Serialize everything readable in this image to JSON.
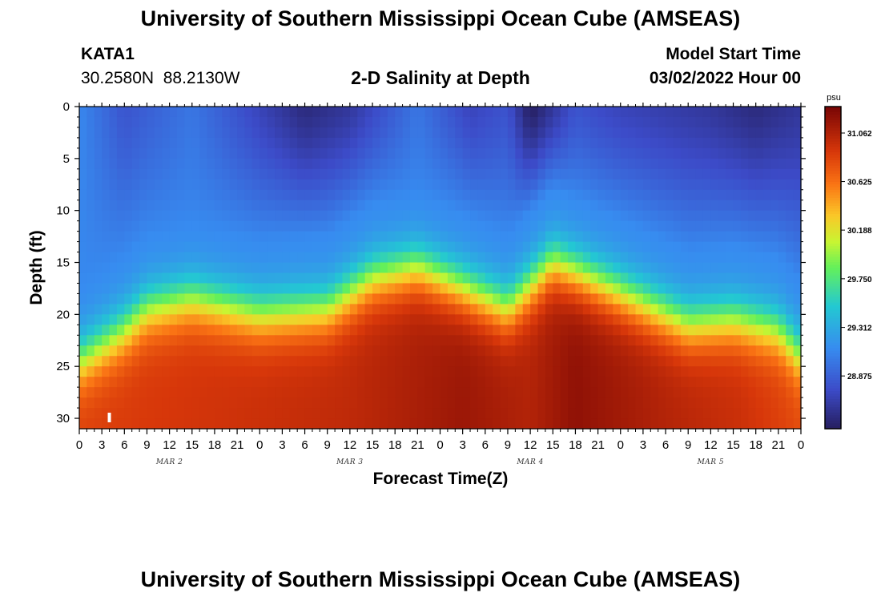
{
  "header": {
    "title": "University of Southern Mississippi Ocean Cube (AMSEAS)",
    "station_id": "KATA1",
    "station_coords": "30.2580N  88.2130W",
    "subtitle": "2-D Salinity at Depth",
    "model_start_label": "Model Start Time",
    "model_start_value": "03/02/2022 Hour 00"
  },
  "footer": {
    "title": "University of Southern Mississippi Ocean Cube (AMSEAS)"
  },
  "chart_data": {
    "type": "heatmap",
    "title": "2-D Salinity at Depth",
    "xlabel": "Forecast Time(Z)",
    "ylabel": "Depth (ft)",
    "x_hour_range": [
      0,
      96
    ],
    "x_tick_labels": [
      "0",
      "3",
      "6",
      "9",
      "12",
      "15",
      "18",
      "21",
      "0",
      "3",
      "6",
      "9",
      "12",
      "15",
      "18",
      "21",
      "0",
      "3",
      "6",
      "9",
      "12",
      "15",
      "18",
      "21",
      "0",
      "3",
      "6",
      "9",
      "12",
      "15",
      "18",
      "21",
      "0"
    ],
    "date_labels": [
      {
        "label": "MAR 2",
        "hour": 12
      },
      {
        "label": "MAR 3",
        "hour": 36
      },
      {
        "label": "MAR 4",
        "hour": 60
      },
      {
        "label": "MAR 5",
        "hour": 84
      }
    ],
    "y_range_ft": [
      0,
      31
    ],
    "y_ticks": [
      0,
      5,
      10,
      15,
      20,
      25,
      30
    ],
    "colorbar": {
      "unit": "psu",
      "range": [
        28.4,
        31.3
      ],
      "ticks": [
        31.062,
        30.625,
        30.188,
        29.75,
        29.312,
        28.875
      ],
      "tick_labels": [
        "31.062",
        "30.625",
        "30.188",
        "29.750",
        "29.312",
        "28.875"
      ]
    },
    "halocline_depth_ft": [
      {
        "hour": 0,
        "depth": 24.5
      },
      {
        "hour": 6,
        "depth": 21.5
      },
      {
        "hour": 9,
        "depth": 19.5
      },
      {
        "hour": 15,
        "depth": 18.5
      },
      {
        "hour": 24,
        "depth": 20.0
      },
      {
        "hour": 33,
        "depth": 19.5
      },
      {
        "hour": 39,
        "depth": 16.5
      },
      {
        "hour": 45,
        "depth": 15.5
      },
      {
        "hour": 51,
        "depth": 17.5
      },
      {
        "hour": 57,
        "depth": 19.5
      },
      {
        "hour": 63,
        "depth": 15.0
      },
      {
        "hour": 69,
        "depth": 17.0
      },
      {
        "hour": 75,
        "depth": 19.0
      },
      {
        "hour": 81,
        "depth": 21.0
      },
      {
        "hour": 87,
        "depth": 20.5
      },
      {
        "hour": 93,
        "depth": 21.5
      },
      {
        "hour": 96,
        "depth": 24.0
      }
    ],
    "surface_salinity_psu": [
      {
        "hour": 0,
        "value": 29.1
      },
      {
        "hour": 6,
        "value": 28.8
      },
      {
        "hour": 15,
        "value": 29.0
      },
      {
        "hour": 24,
        "value": 28.7
      },
      {
        "hour": 30,
        "value": 28.5
      },
      {
        "hour": 36,
        "value": 28.6
      },
      {
        "hour": 45,
        "value": 29.0
      },
      {
        "hour": 52,
        "value": 28.7
      },
      {
        "hour": 57,
        "value": 28.8
      },
      {
        "hour": 60,
        "value": 28.4
      },
      {
        "hour": 66,
        "value": 28.8
      },
      {
        "hour": 72,
        "value": 28.7
      },
      {
        "hour": 84,
        "value": 28.6
      },
      {
        "hour": 90,
        "value": 28.5
      },
      {
        "hour": 96,
        "value": 28.6
      }
    ],
    "bottom_salinity_psu": [
      {
        "hour": 0,
        "value": 30.85
      },
      {
        "hour": 12,
        "value": 30.9
      },
      {
        "hour": 24,
        "value": 30.95
      },
      {
        "hour": 36,
        "value": 31.0
      },
      {
        "hour": 51,
        "value": 31.15
      },
      {
        "hour": 60,
        "value": 31.05
      },
      {
        "hour": 66,
        "value": 31.2
      },
      {
        "hour": 78,
        "value": 31.05
      },
      {
        "hour": 88,
        "value": 30.95
      },
      {
        "hour": 96,
        "value": 30.8
      }
    ]
  }
}
